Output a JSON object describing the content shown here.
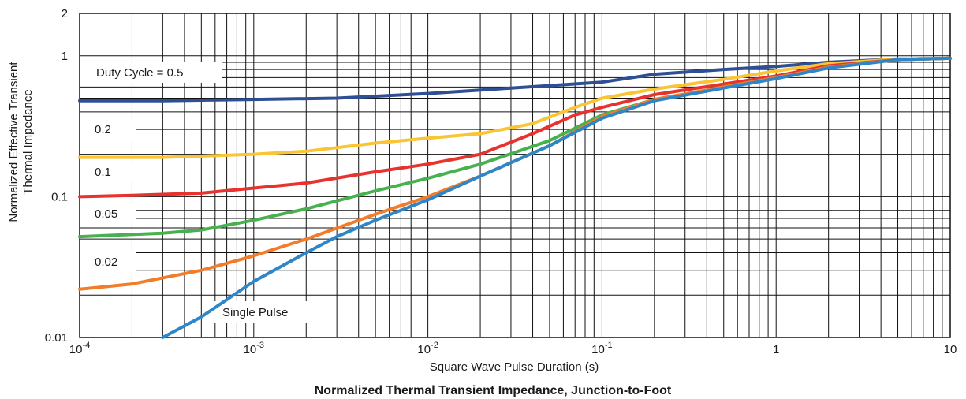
{
  "chart_data": {
    "type": "line",
    "title": "Normalized Thermal Transient Impedance, Junction-to-Foot",
    "xlabel": "Square Wave Pulse Duration (s)",
    "ylabel_lines": [
      "Normalized Effective Transient",
      "Thermal Impedance"
    ],
    "x_scale": "log",
    "y_scale": "log",
    "xlim": [
      0.0001,
      10
    ],
    "ylim": [
      0.01,
      2
    ],
    "grid": true,
    "x_ticks": [
      {
        "value": 0.0001,
        "base": "10",
        "exp": "-4"
      },
      {
        "value": 0.001,
        "base": "10",
        "exp": "-3"
      },
      {
        "value": 0.01,
        "base": "10",
        "exp": "-2"
      },
      {
        "value": 0.1,
        "base": "10",
        "exp": "-1"
      },
      {
        "value": 1,
        "base": "1",
        "exp": ""
      },
      {
        "value": 10,
        "base": "10",
        "exp": ""
      }
    ],
    "y_ticks": [
      {
        "value": 0.01,
        "label": "0.01"
      },
      {
        "value": 0.1,
        "label": "0.1"
      },
      {
        "value": 1,
        "label": "1"
      },
      {
        "value": 2,
        "label": "2"
      }
    ],
    "series": [
      {
        "label": "Duty Cycle = 0.5",
        "color": "#2e4f94",
        "points": [
          [
            0.0001,
            0.48
          ],
          [
            0.0003,
            0.48
          ],
          [
            0.001,
            0.49
          ],
          [
            0.003,
            0.5
          ],
          [
            0.01,
            0.54
          ],
          [
            0.03,
            0.59
          ],
          [
            0.1,
            0.65
          ],
          [
            0.2,
            0.74
          ],
          [
            0.5,
            0.8
          ],
          [
            1,
            0.84
          ],
          [
            2,
            0.9
          ],
          [
            5,
            0.95
          ],
          [
            10,
            0.96
          ]
        ]
      },
      {
        "label": "0.2",
        "color": "#f9c534",
        "points": [
          [
            0.0001,
            0.19
          ],
          [
            0.0003,
            0.19
          ],
          [
            0.001,
            0.2
          ],
          [
            0.002,
            0.21
          ],
          [
            0.005,
            0.24
          ],
          [
            0.01,
            0.26
          ],
          [
            0.02,
            0.28
          ],
          [
            0.04,
            0.33
          ],
          [
            0.07,
            0.43
          ],
          [
            0.1,
            0.5
          ],
          [
            0.2,
            0.58
          ],
          [
            0.5,
            0.68
          ],
          [
            1,
            0.78
          ],
          [
            2,
            0.88
          ],
          [
            5,
            0.95
          ],
          [
            10,
            0.96
          ]
        ]
      },
      {
        "label": "0.1",
        "color": "#e8322e",
        "points": [
          [
            0.0001,
            0.1
          ],
          [
            0.0002,
            0.102
          ],
          [
            0.0005,
            0.106
          ],
          [
            0.001,
            0.115
          ],
          [
            0.002,
            0.125
          ],
          [
            0.005,
            0.15
          ],
          [
            0.01,
            0.17
          ],
          [
            0.02,
            0.2
          ],
          [
            0.04,
            0.28
          ],
          [
            0.07,
            0.38
          ],
          [
            0.1,
            0.43
          ],
          [
            0.2,
            0.53
          ],
          [
            0.5,
            0.63
          ],
          [
            1,
            0.72
          ],
          [
            2,
            0.85
          ],
          [
            5,
            0.94
          ],
          [
            10,
            0.96
          ]
        ]
      },
      {
        "label": "0.05",
        "color": "#46b14e",
        "points": [
          [
            0.0001,
            0.052
          ],
          [
            0.0003,
            0.055
          ],
          [
            0.0005,
            0.058
          ],
          [
            0.001,
            0.068
          ],
          [
            0.002,
            0.082
          ],
          [
            0.005,
            0.11
          ],
          [
            0.01,
            0.135
          ],
          [
            0.02,
            0.17
          ],
          [
            0.05,
            0.25
          ],
          [
            0.1,
            0.38
          ],
          [
            0.2,
            0.49
          ],
          [
            0.5,
            0.6
          ],
          [
            1,
            0.7
          ],
          [
            2,
            0.83
          ],
          [
            5,
            0.94
          ],
          [
            10,
            0.96
          ]
        ]
      },
      {
        "label": "0.02",
        "color": "#f37c2a",
        "points": [
          [
            0.0001,
            0.022
          ],
          [
            0.0002,
            0.024
          ],
          [
            0.0005,
            0.03
          ],
          [
            0.001,
            0.038
          ],
          [
            0.002,
            0.05
          ],
          [
            0.005,
            0.075
          ],
          [
            0.01,
            0.1
          ],
          [
            0.02,
            0.14
          ],
          [
            0.05,
            0.23
          ],
          [
            0.1,
            0.37
          ],
          [
            0.2,
            0.49
          ],
          [
            0.5,
            0.6
          ],
          [
            1,
            0.7
          ],
          [
            2,
            0.83
          ],
          [
            5,
            0.94
          ],
          [
            10,
            0.96
          ]
        ]
      },
      {
        "label": "Single Pulse",
        "color": "#2e86c9",
        "points": [
          [
            0.0003,
            0.01
          ],
          [
            0.0005,
            0.014
          ],
          [
            0.001,
            0.025
          ],
          [
            0.002,
            0.04
          ],
          [
            0.003,
            0.052
          ],
          [
            0.005,
            0.068
          ],
          [
            0.01,
            0.095
          ],
          [
            0.02,
            0.14
          ],
          [
            0.05,
            0.23
          ],
          [
            0.1,
            0.36
          ],
          [
            0.2,
            0.48
          ],
          [
            0.5,
            0.59
          ],
          [
            1,
            0.69
          ],
          [
            2,
            0.82
          ],
          [
            5,
            0.94
          ],
          [
            10,
            0.96
          ]
        ]
      }
    ]
  }
}
